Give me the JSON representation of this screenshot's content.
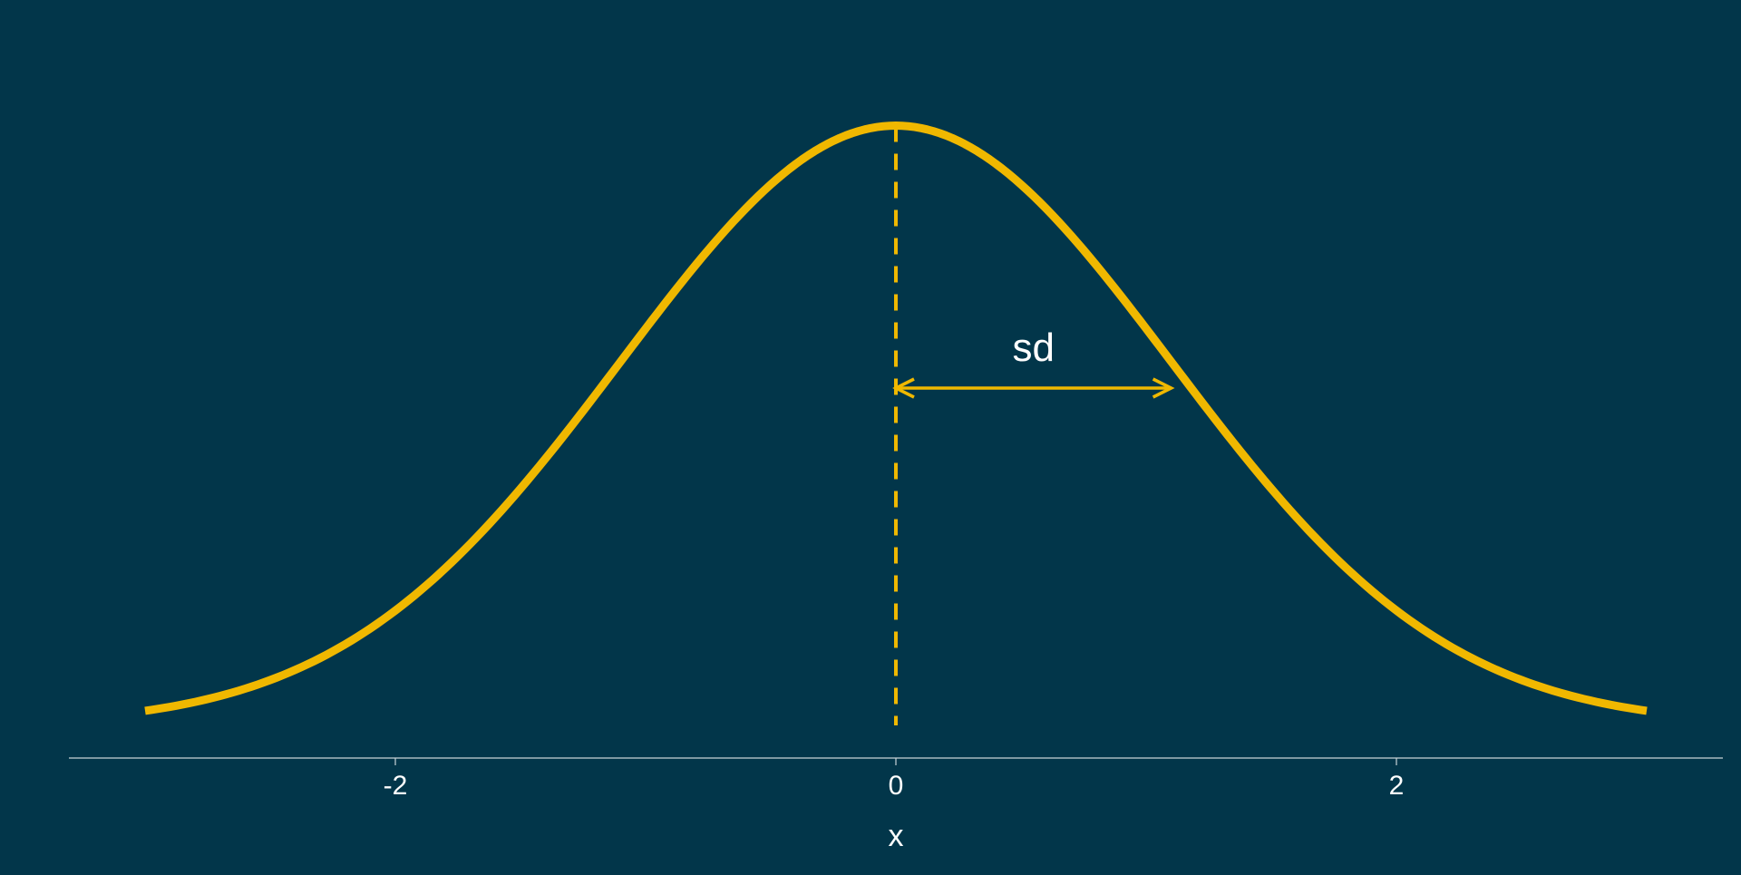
{
  "colors": {
    "background": "#02364a",
    "curve": "#f0b800",
    "axis": "#c9d3d8",
    "text": "#ffffff"
  },
  "chart_data": {
    "type": "line",
    "xlabel": "x",
    "ylabel": "",
    "xlim": [
      -3.3,
      3.3
    ],
    "ylim": [
      0,
      0.42
    ],
    "x_ticks": [
      -2,
      0,
      2
    ],
    "x_tick_labels": [
      "-2",
      "0",
      "2"
    ],
    "grid": false,
    "series": [
      {
        "distribution": "normal",
        "mean": 0,
        "sd": 1.1,
        "x_range": [
          -3,
          3
        ]
      }
    ],
    "annotations": {
      "mean_line": {
        "x": 0,
        "style": "dashed"
      },
      "sd_arrow": {
        "x_start": 0,
        "x_end": 1.1,
        "label": "sd"
      }
    }
  }
}
